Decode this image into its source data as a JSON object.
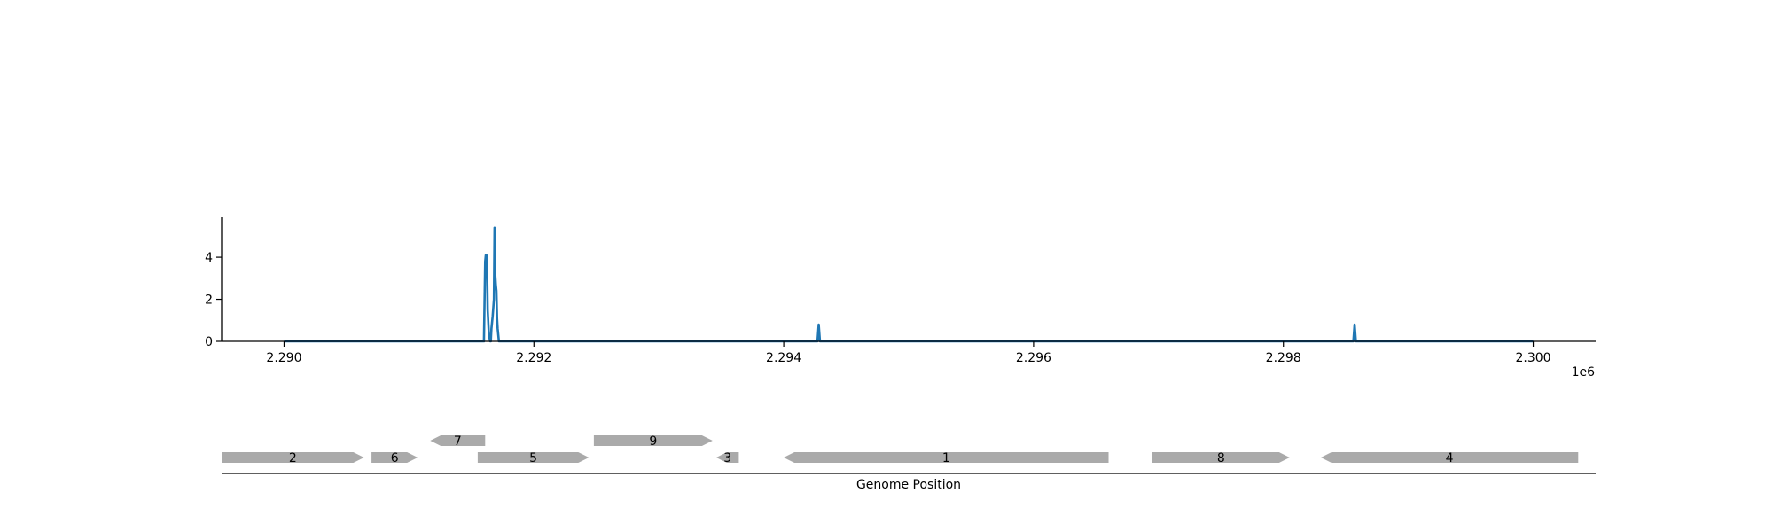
{
  "chart_data": [
    {
      "type": "line",
      "title": "",
      "xlabel": "",
      "ylabel": "",
      "x_offset_label": "1e6",
      "xlim": [
        2289500,
        2300500
      ],
      "ylim": [
        0,
        5.9
      ],
      "xticks": [
        2290000,
        2292000,
        2294000,
        2296000,
        2298000,
        2300000
      ],
      "xtick_labels": [
        "2.290",
        "2.292",
        "2.294",
        "2.296",
        "2.298",
        "2.300"
      ],
      "yticks": [
        0,
        2,
        4
      ],
      "ytick_labels": [
        "0",
        "2",
        "4"
      ],
      "grid": false,
      "line_color": "#1f77b4",
      "series": [
        {
          "x": [
            2290000,
            2291600,
            2291610,
            2291615,
            2291620,
            2291625,
            2291630,
            2291640,
            2291650,
            2291655,
            2291660,
            2291670,
            2291680,
            2291685,
            2291690,
            2291695,
            2291700,
            2291705,
            2291710,
            2291715,
            2291720,
            2291730,
            2294270,
            2294280,
            2294290,
            2298560,
            2298570,
            2298580,
            2300000
          ],
          "y": [
            0,
            0,
            3.8,
            4.1,
            4.1,
            3.6,
            1.5,
            0.3,
            0,
            0,
            0.6,
            1.2,
            2.0,
            5.4,
            3.2,
            2.7,
            2.4,
            1.1,
            0.6,
            0.3,
            0,
            0,
            0,
            0.8,
            0,
            0,
            0.8,
            0,
            0
          ]
        }
      ]
    },
    {
      "type": "gene-track",
      "xlabel": "Genome Position",
      "xlim": [
        2289500,
        2300500
      ],
      "feature_color": "#aaaaaa",
      "features": [
        {
          "label": "2",
          "start": 2289500,
          "end": 2290640,
          "strand": "+",
          "row": 0
        },
        {
          "label": "6",
          "start": 2290700,
          "end": 2291070,
          "strand": "+",
          "row": 0
        },
        {
          "label": "7",
          "start": 2291170,
          "end": 2291610,
          "strand": "-",
          "row": 1
        },
        {
          "label": "5",
          "start": 2291550,
          "end": 2292440,
          "strand": "+",
          "row": 0
        },
        {
          "label": "9",
          "start": 2292480,
          "end": 2293430,
          "strand": "+",
          "row": 1
        },
        {
          "label": "3",
          "start": 2293460,
          "end": 2293640,
          "strand": "-",
          "row": 0
        },
        {
          "label": "1",
          "start": 2294000,
          "end": 2296600,
          "strand": "-",
          "row": 0
        },
        {
          "label": "8",
          "start": 2296950,
          "end": 2298050,
          "strand": "+",
          "row": 0
        },
        {
          "label": "4",
          "start": 2298300,
          "end": 2300360,
          "strand": "-",
          "row": 0
        }
      ]
    }
  ]
}
